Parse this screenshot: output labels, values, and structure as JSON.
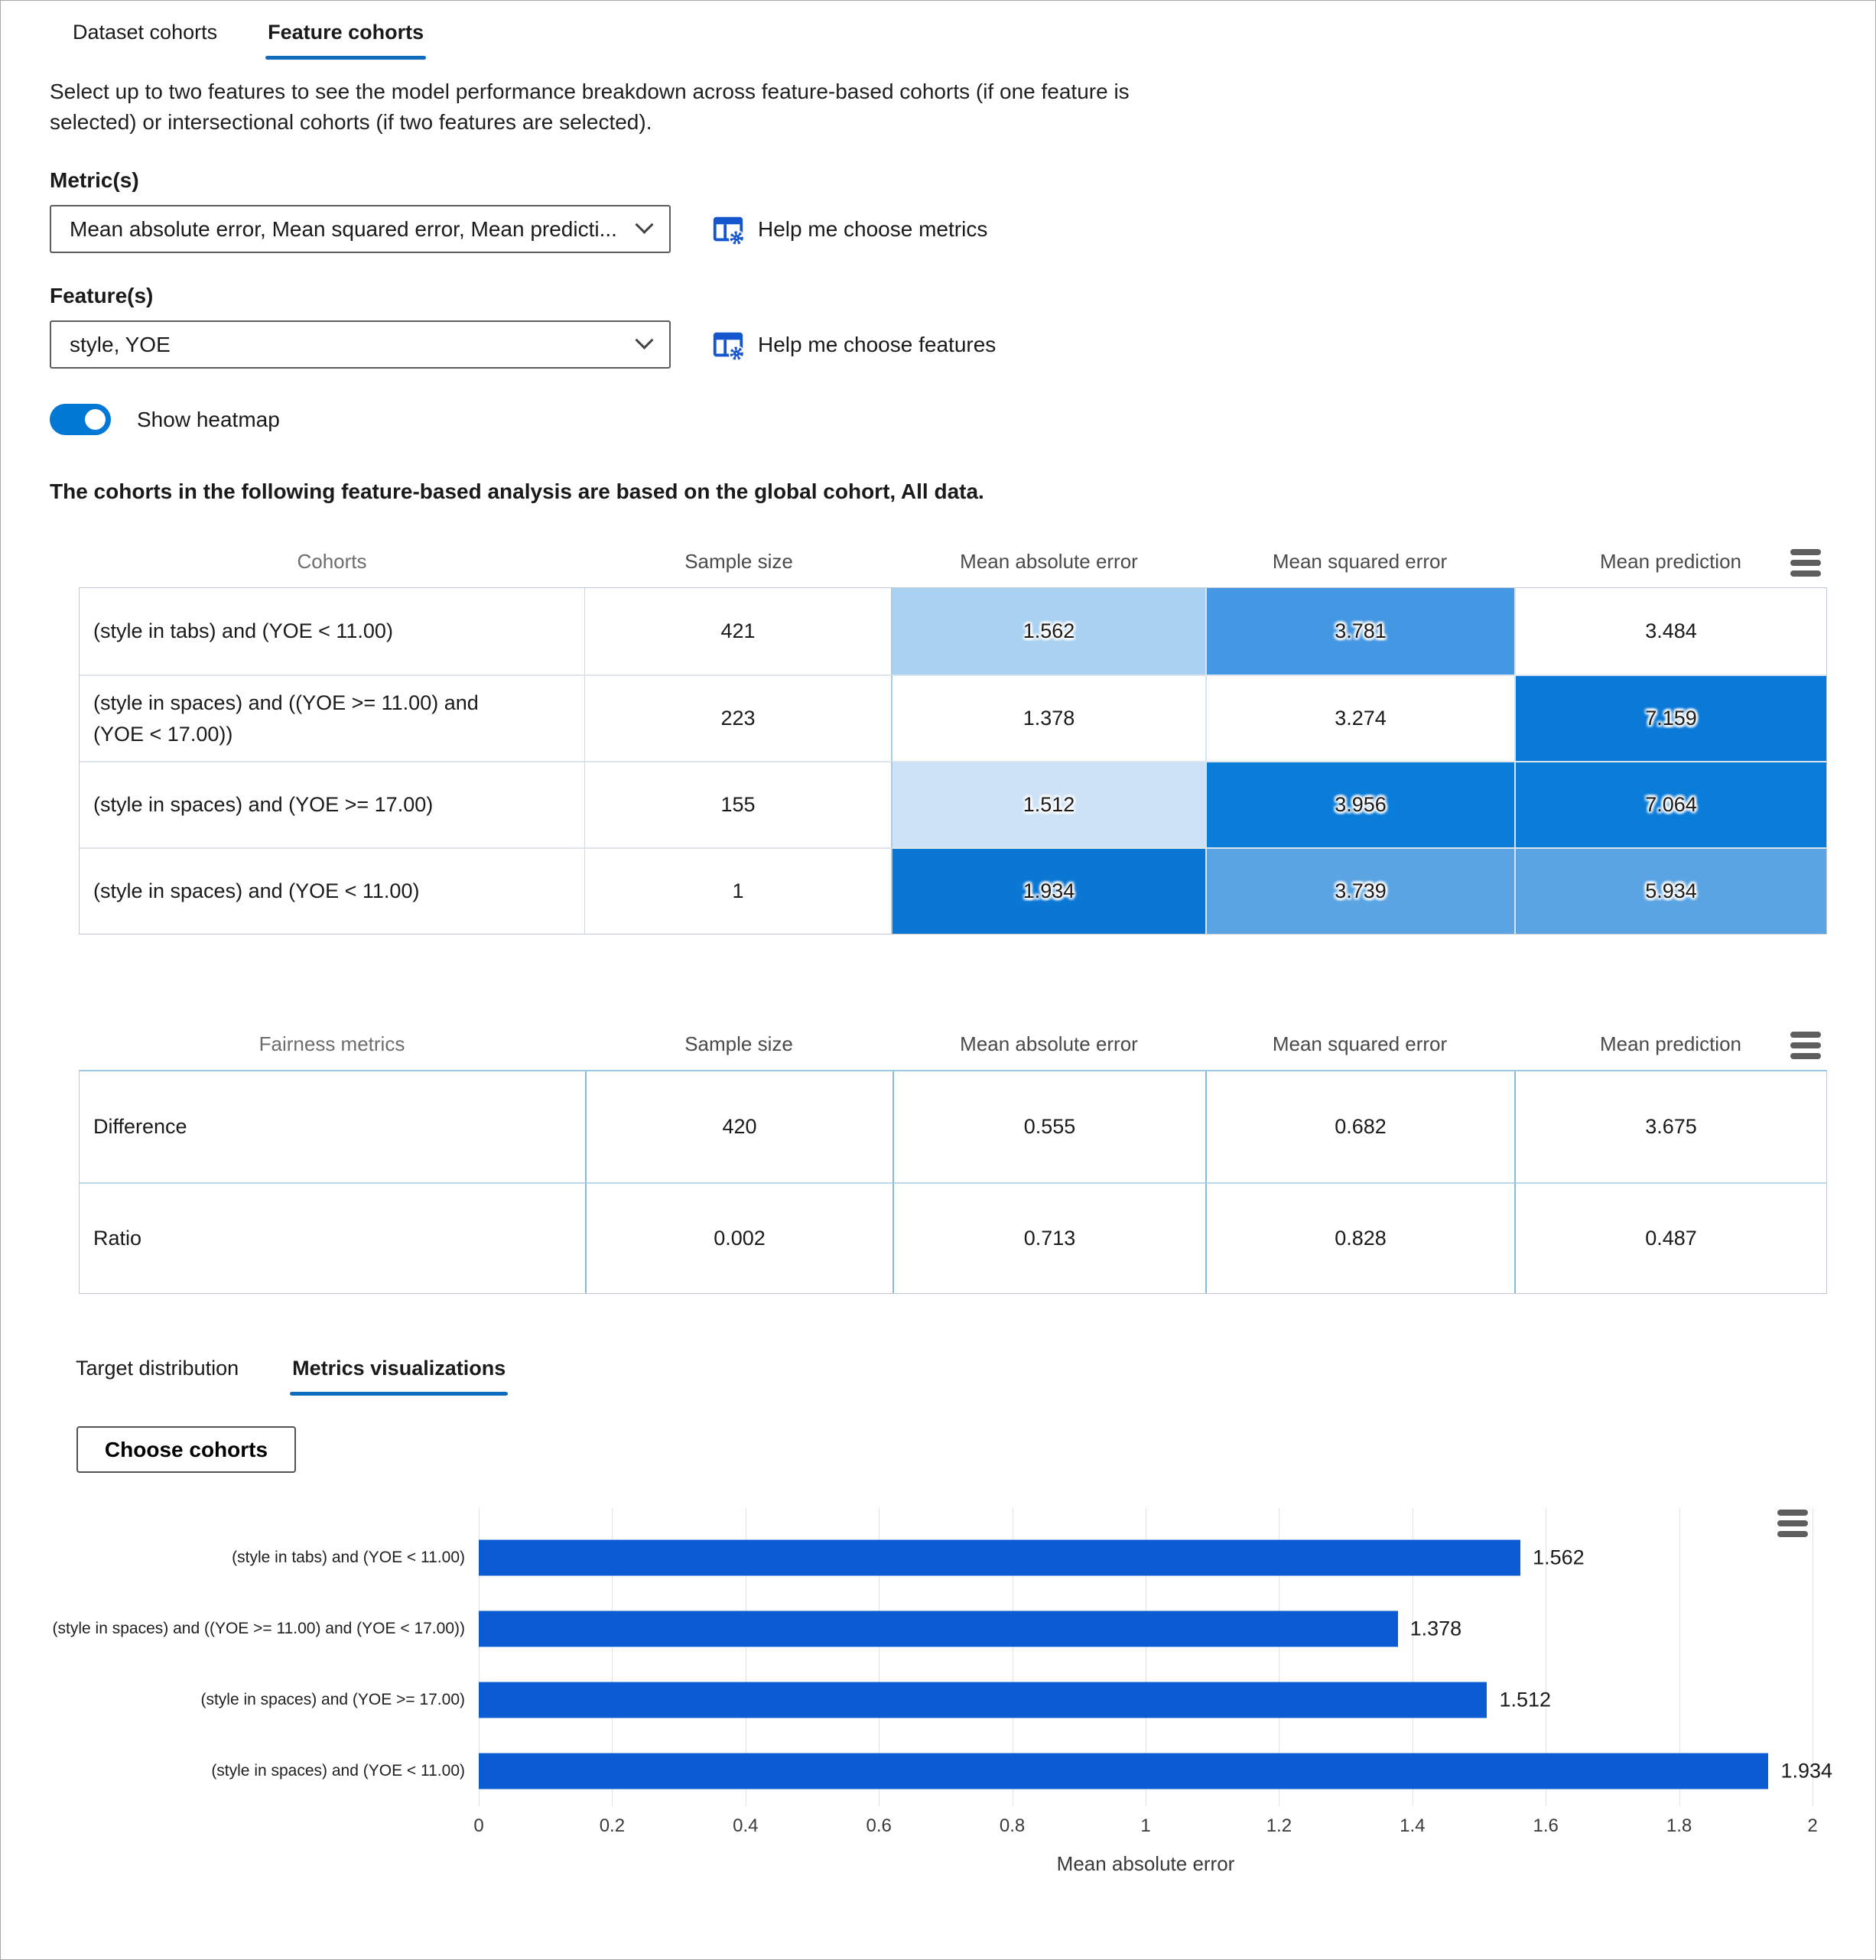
{
  "top_tabs": {
    "dataset": "Dataset cohorts",
    "feature": "Feature cohorts"
  },
  "description": "Select up to two features to see the model performance breakdown across feature-based cohorts (if one feature is selected) or intersectional cohorts (if two features are selected).",
  "metric": {
    "label": "Metric(s)",
    "value": "Mean absolute error, Mean squared error, Mean predicti...",
    "help": "Help me choose metrics"
  },
  "feature": {
    "label": "Feature(s)",
    "value": "style, YOE",
    "help": "Help me choose features"
  },
  "toggle": {
    "label": "Show heatmap",
    "on": true
  },
  "note": "The cohorts in the following feature-based analysis are based on the global cohort, All data.",
  "colors": {
    "accent_underline": "#0f6cbd",
    "toggle_on": "#0078d4",
    "bar": "#0b5cd2"
  },
  "cohort_table": {
    "headers": [
      "Cohorts",
      "Sample size",
      "Mean absolute error",
      "Mean squared error",
      "Mean prediction"
    ],
    "rows": [
      {
        "name": "(style in tabs) and (YOE < 11.00)",
        "sample": "421",
        "cells": [
          {
            "value": "1.562",
            "bg": "#a9d1f1"
          },
          {
            "value": "3.781",
            "bg": "#4497e2"
          },
          {
            "value": "3.484",
            "bg": "#ffffff"
          }
        ]
      },
      {
        "name": "(style in spaces) and ((YOE >= 11.00) and (YOE < 17.00))",
        "sample": "223",
        "cells": [
          {
            "value": "1.378",
            "bg": "#ffffff"
          },
          {
            "value": "3.274",
            "bg": "#ffffff"
          },
          {
            "value": "7.159",
            "bg": "#0a79d8"
          }
        ]
      },
      {
        "name": "(style in spaces) and (YOE >= 17.00)",
        "sample": "155",
        "cells": [
          {
            "value": "1.512",
            "bg": "#cde2f6"
          },
          {
            "value": "3.956",
            "bg": "#0a7cda"
          },
          {
            "value": "7.064",
            "bg": "#0a7cda"
          }
        ]
      },
      {
        "name": "(style in spaces) and (YOE < 11.00)",
        "sample": "1",
        "cells": [
          {
            "value": "1.934",
            "bg": "#0b77d4"
          },
          {
            "value": "3.739",
            "bg": "#5aa4e4"
          },
          {
            "value": "5.934",
            "bg": "#5aa4e4"
          }
        ]
      }
    ]
  },
  "fairness_table": {
    "headers": [
      "Fairness metrics",
      "Sample size",
      "Mean absolute error",
      "Mean squared error",
      "Mean prediction"
    ],
    "rows": [
      {
        "name": "Difference",
        "values": [
          "420",
          "0.555",
          "0.682",
          "3.675"
        ]
      },
      {
        "name": "Ratio",
        "values": [
          "0.002",
          "0.713",
          "0.828",
          "0.487"
        ]
      }
    ]
  },
  "sub_tabs": {
    "target": "Target distribution",
    "metrics": "Metrics visualizations"
  },
  "choose_cohorts_label": "Choose cohorts",
  "chart_data": {
    "type": "bar",
    "orientation": "horizontal",
    "categories": [
      "(style in tabs) and (YOE < 11.00)",
      "(style in spaces) and ((YOE >= 11.00) and (YOE < 17.00))",
      "(style in spaces) and (YOE >= 17.00)",
      "(style in spaces) and (YOE < 11.00)"
    ],
    "values": [
      1.562,
      1.378,
      1.512,
      1.934
    ],
    "value_labels": [
      "1.562",
      "1.378",
      "1.512",
      "1.934"
    ],
    "xlabel": "Mean absolute error",
    "xlim": [
      0,
      2
    ],
    "xticks": [
      "0",
      "0.2",
      "0.4",
      "0.6",
      "0.8",
      "1",
      "1.2",
      "1.4",
      "1.6",
      "1.8",
      "2"
    ],
    "grid": true,
    "legend": "none",
    "bar_color": "#0b5cd2"
  }
}
